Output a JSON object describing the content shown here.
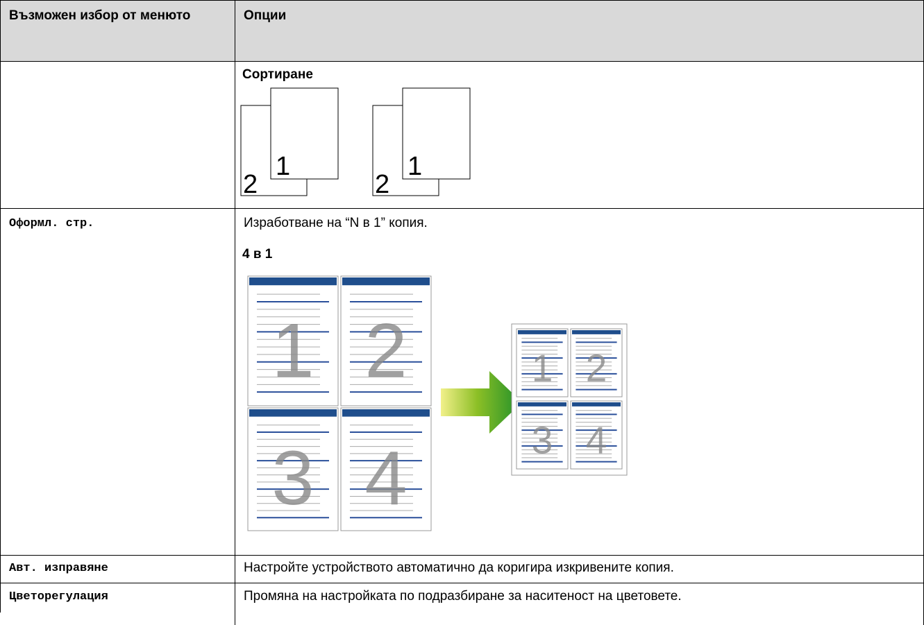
{
  "table": {
    "header": [
      "Възможен избор от менюто",
      "Опции"
    ],
    "sort": {
      "heading": "Сортиране",
      "sets": [
        {
          "front": "1",
          "back": "2"
        },
        {
          "front": "1",
          "back": "2"
        }
      ]
    },
    "layout": {
      "menu": "Оформл. стр.",
      "text": "Изработване на “N в 1” копия.",
      "heading": "4 в 1",
      "pages": [
        "1",
        "2",
        "3",
        "4"
      ]
    },
    "deskew": {
      "menu": "Авт. изправяне",
      "text": "Настройте устройството автоматично да коригира изкривените копия."
    },
    "color": {
      "menu": "Цветорегулация",
      "text": "Промяна на настройката по подразбиране за наситеност на цветовете."
    }
  }
}
